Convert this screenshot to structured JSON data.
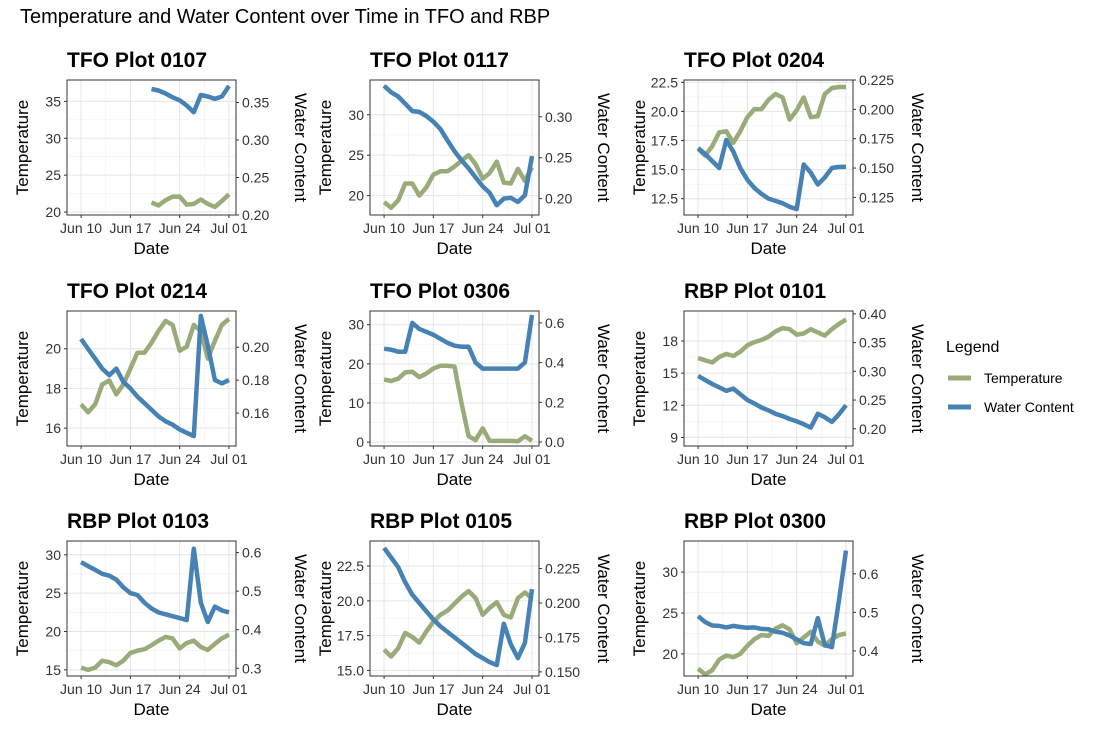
{
  "title": "Temperature and Water Content over Time in TFO and RBP",
  "legend": {
    "title": "Legend",
    "items": [
      {
        "label": "Temperature",
        "color": "#9aab7a"
      },
      {
        "label": "Water Content",
        "color": "#4682b4"
      }
    ]
  },
  "chart_data": [
    {
      "type": "line",
      "title": "TFO Plot 0107",
      "xlabel": "Date",
      "ylabel": "Temperature",
      "y2label": "Water Content",
      "x_ticks": [
        "Jun 10",
        "Jun 17",
        "Jun 24",
        "Jul 01"
      ],
      "x": [
        "2023-06-20",
        "2023-06-21",
        "2023-06-22",
        "2023-06-23",
        "2023-06-24",
        "2023-06-25",
        "2023-06-26",
        "2023-06-27",
        "2023-06-28",
        "2023-06-29",
        "2023-06-30",
        "2023-07-01"
      ],
      "ylim": [
        19.6,
        37.9
      ],
      "y_ticks": [
        20,
        25,
        30,
        35
      ],
      "y2lim": [
        0.2,
        0.38
      ],
      "y2_ticks": [
        "0.20",
        "0.25",
        "0.30",
        "0.35"
      ],
      "series": [
        {
          "name": "Temperature",
          "values": [
            21.3,
            20.9,
            21.6,
            22.1,
            22.1,
            21.0,
            21.1,
            21.7,
            21.1,
            20.7,
            21.5,
            22.4
          ]
        },
        {
          "name": "Water Content",
          "values": [
            0.368,
            0.366,
            0.362,
            0.357,
            0.353,
            0.346,
            0.337,
            0.36,
            0.358,
            0.355,
            0.358,
            0.372
          ]
        }
      ]
    },
    {
      "type": "line",
      "title": "TFO Plot 0117",
      "xlabel": "Date",
      "ylabel": "Temperature",
      "y2label": "Water Content",
      "x_ticks": [
        "Jun 10",
        "Jun 17",
        "Jun 24",
        "Jul 01"
      ],
      "x": [
        "2023-06-10",
        "2023-06-11",
        "2023-06-12",
        "2023-06-13",
        "2023-06-14",
        "2023-06-15",
        "2023-06-16",
        "2023-06-17",
        "2023-06-18",
        "2023-06-19",
        "2023-06-20",
        "2023-06-21",
        "2023-06-22",
        "2023-06-23",
        "2023-06-24",
        "2023-06-25",
        "2023-06-26",
        "2023-06-27",
        "2023-06-28",
        "2023-06-29",
        "2023-06-30",
        "2023-07-01"
      ],
      "ylim": [
        17.6,
        34.3
      ],
      "y_ticks": [
        20,
        25,
        30
      ],
      "y2lim": [
        0.18,
        0.345
      ],
      "y2_ticks": [
        "0.20",
        "0.25",
        "0.30"
      ],
      "series": [
        {
          "name": "Temperature",
          "values": [
            19.2,
            18.5,
            19.4,
            21.5,
            21.5,
            20.0,
            21.0,
            22.6,
            23.0,
            23.0,
            23.6,
            24.3,
            25.0,
            23.9,
            22.1,
            22.8,
            24.2,
            21.6,
            21.5,
            23.3,
            21.8,
            23.5
          ]
        },
        {
          "name": "Water Content",
          "values": [
            0.338,
            0.33,
            0.325,
            0.316,
            0.307,
            0.306,
            0.301,
            0.294,
            0.285,
            0.271,
            0.258,
            0.247,
            0.237,
            0.226,
            0.215,
            0.207,
            0.192,
            0.2,
            0.201,
            0.196,
            0.204,
            0.252
          ]
        }
      ]
    },
    {
      "type": "line",
      "title": "TFO Plot 0204",
      "xlabel": "Date",
      "ylabel": "Temperature",
      "y2label": "Water Content",
      "x_ticks": [
        "Jun 10",
        "Jun 17",
        "Jun 24",
        "Jul 01"
      ],
      "x": [
        "2023-06-10",
        "2023-06-11",
        "2023-06-12",
        "2023-06-13",
        "2023-06-14",
        "2023-06-15",
        "2023-06-16",
        "2023-06-17",
        "2023-06-18",
        "2023-06-19",
        "2023-06-20",
        "2023-06-21",
        "2023-06-22",
        "2023-06-23",
        "2023-06-24",
        "2023-06-25",
        "2023-06-26",
        "2023-06-27",
        "2023-06-28",
        "2023-06-29",
        "2023-06-30",
        "2023-07-01"
      ],
      "ylim": [
        11.1,
        22.7
      ],
      "y_ticks": [
        12.5,
        15.0,
        17.5,
        20.0,
        22.5
      ],
      "y_tick_labels": [
        "12.5",
        "15.0",
        "17.5",
        "20.0",
        "22.5"
      ],
      "y2lim": [
        0.11,
        0.225
      ],
      "y2_ticks": [
        "0.125",
        "0.150",
        "0.175",
        "0.200",
        "0.225"
      ],
      "series": [
        {
          "name": "Temperature",
          "values": [
            16.8,
            16.2,
            17.0,
            18.2,
            18.3,
            17.3,
            18.3,
            19.5,
            20.2,
            20.2,
            21.0,
            21.5,
            21.2,
            19.3,
            20.1,
            21.2,
            19.5,
            19.6,
            21.5,
            22.0,
            22.1,
            22.1
          ]
        },
        {
          "name": "Water Content",
          "values": [
            0.167,
            0.162,
            0.156,
            0.15,
            0.174,
            0.164,
            0.15,
            0.14,
            0.133,
            0.128,
            0.124,
            0.122,
            0.12,
            0.117,
            0.115,
            0.153,
            0.146,
            0.136,
            0.142,
            0.15,
            0.151,
            0.151
          ]
        }
      ]
    },
    {
      "type": "line",
      "title": "TFO Plot 0214",
      "xlabel": "Date",
      "ylabel": "Temperature",
      "y2label": "Water Content",
      "x_ticks": [
        "Jun 10",
        "Jun 17",
        "Jun 24",
        "Jul 01"
      ],
      "x": [
        "2023-06-10",
        "2023-06-11",
        "2023-06-12",
        "2023-06-13",
        "2023-06-14",
        "2023-06-15",
        "2023-06-16",
        "2023-06-17",
        "2023-06-18",
        "2023-06-19",
        "2023-06-20",
        "2023-06-21",
        "2023-06-22",
        "2023-06-23",
        "2023-06-24",
        "2023-06-25",
        "2023-06-26",
        "2023-06-27",
        "2023-06-28",
        "2023-06-29",
        "2023-06-30",
        "2023-07-01"
      ],
      "ylim": [
        15.1,
        21.9
      ],
      "y_ticks": [
        16,
        18,
        20
      ],
      "y2lim": [
        0.14,
        0.222
      ],
      "y2_ticks": [
        "0.16",
        "0.18",
        "0.20"
      ],
      "series": [
        {
          "name": "Temperature",
          "values": [
            17.2,
            16.8,
            17.2,
            18.2,
            18.4,
            17.7,
            18.2,
            19.0,
            19.8,
            19.8,
            20.3,
            20.9,
            21.4,
            21.2,
            19.9,
            20.1,
            21.2,
            20.9,
            19.5,
            20.4,
            21.2,
            21.5
          ]
        },
        {
          "name": "Water Content",
          "values": [
            0.205,
            0.199,
            0.193,
            0.187,
            0.183,
            0.187,
            0.179,
            0.175,
            0.17,
            0.166,
            0.162,
            0.158,
            0.155,
            0.153,
            0.15,
            0.148,
            0.146,
            0.219,
            0.201,
            0.18,
            0.178,
            0.18
          ]
        }
      ]
    },
    {
      "type": "line",
      "title": "TFO Plot 0306",
      "xlabel": "Date",
      "ylabel": "Temperature",
      "y2label": "Water Content",
      "x_ticks": [
        "Jun 10",
        "Jun 17",
        "Jun 24",
        "Jul 01"
      ],
      "x": [
        "2023-06-10",
        "2023-06-11",
        "2023-06-12",
        "2023-06-13",
        "2023-06-14",
        "2023-06-15",
        "2023-06-16",
        "2023-06-17",
        "2023-06-18",
        "2023-06-19",
        "2023-06-20",
        "2023-06-21",
        "2023-06-22",
        "2023-06-23",
        "2023-06-24",
        "2023-06-25",
        "2023-06-26",
        "2023-06-27",
        "2023-06-28",
        "2023-06-29",
        "2023-06-30",
        "2023-07-01"
      ],
      "ylim": [
        -1.0,
        33.5
      ],
      "y_ticks": [
        0,
        10,
        20,
        30
      ],
      "y2lim": [
        -0.02,
        0.66
      ],
      "y2_ticks": [
        "0.0",
        "0.2",
        "0.4",
        "0.6"
      ],
      "series": [
        {
          "name": "Temperature",
          "values": [
            16.0,
            15.6,
            16.2,
            17.8,
            18.0,
            16.6,
            17.5,
            18.8,
            19.5,
            19.5,
            19.3,
            10.0,
            1.5,
            0.5,
            3.5,
            0.3,
            0.3,
            0.3,
            0.3,
            0.2,
            1.5,
            0.3
          ]
        },
        {
          "name": "Water Content",
          "values": [
            0.47,
            0.465,
            0.455,
            0.455,
            0.6,
            0.57,
            0.555,
            0.54,
            0.52,
            0.5,
            0.485,
            0.48,
            0.48,
            0.4,
            0.37,
            0.37,
            0.37,
            0.37,
            0.37,
            0.37,
            0.4,
            0.64
          ]
        }
      ]
    },
    {
      "type": "line",
      "title": "RBP Plot 0101",
      "xlabel": "Date",
      "ylabel": "Temperature",
      "y2label": "Water Content",
      "x_ticks": [
        "Jun 10",
        "Jun 17",
        "Jun 24",
        "Jul 01"
      ],
      "x": [
        "2023-06-10",
        "2023-06-11",
        "2023-06-12",
        "2023-06-13",
        "2023-06-14",
        "2023-06-15",
        "2023-06-16",
        "2023-06-17",
        "2023-06-18",
        "2023-06-19",
        "2023-06-20",
        "2023-06-21",
        "2023-06-22",
        "2023-06-23",
        "2023-06-24",
        "2023-06-25",
        "2023-06-26",
        "2023-06-27",
        "2023-06-28",
        "2023-06-29",
        "2023-06-30",
        "2023-07-01"
      ],
      "ylim": [
        8.2,
        20.8
      ],
      "y_ticks": [
        9,
        12,
        15,
        18
      ],
      "y2lim": [
        0.17,
        0.405
      ],
      "y2_ticks": [
        "0.20",
        "0.25",
        "0.30",
        "0.35",
        "0.40"
      ],
      "series": [
        {
          "name": "Temperature",
          "values": [
            16.4,
            16.2,
            16.0,
            16.5,
            16.8,
            16.6,
            17.0,
            17.6,
            17.9,
            18.1,
            18.4,
            18.9,
            19.2,
            19.1,
            18.6,
            18.7,
            19.1,
            18.8,
            18.5,
            19.1,
            19.6,
            20.0
          ]
        },
        {
          "name": "Water Content",
          "values": [
            0.292,
            0.285,
            0.278,
            0.272,
            0.266,
            0.27,
            0.26,
            0.25,
            0.244,
            0.237,
            0.232,
            0.226,
            0.222,
            0.217,
            0.213,
            0.208,
            0.202,
            0.226,
            0.22,
            0.212,
            0.225,
            0.241
          ]
        }
      ]
    },
    {
      "type": "line",
      "title": "RBP Plot 0103",
      "xlabel": "Date",
      "ylabel": "Temperature",
      "y2label": "Water Content",
      "x_ticks": [
        "Jun 10",
        "Jun 17",
        "Jun 24",
        "Jul 01"
      ],
      "x": [
        "2023-06-10",
        "2023-06-11",
        "2023-06-12",
        "2023-06-13",
        "2023-06-14",
        "2023-06-15",
        "2023-06-16",
        "2023-06-17",
        "2023-06-18",
        "2023-06-19",
        "2023-06-20",
        "2023-06-21",
        "2023-06-22",
        "2023-06-23",
        "2023-06-24",
        "2023-06-25",
        "2023-06-26",
        "2023-06-27",
        "2023-06-28",
        "2023-06-29",
        "2023-06-30",
        "2023-07-01"
      ],
      "ylim": [
        14.2,
        31.8
      ],
      "y_ticks": [
        15,
        20,
        25,
        30
      ],
      "y2lim": [
        0.28,
        0.63
      ],
      "y2_ticks": [
        "0.3",
        "0.4",
        "0.5",
        "0.6"
      ],
      "series": [
        {
          "name": "Temperature",
          "values": [
            15.3,
            15.0,
            15.3,
            16.2,
            16.0,
            15.6,
            16.2,
            17.2,
            17.5,
            17.7,
            18.2,
            18.8,
            19.3,
            19.1,
            17.8,
            18.5,
            18.8,
            18.0,
            17.6,
            18.4,
            19.1,
            19.6
          ]
        },
        {
          "name": "Water Content",
          "values": [
            0.575,
            0.565,
            0.555,
            0.545,
            0.54,
            0.53,
            0.51,
            0.495,
            0.49,
            0.47,
            0.455,
            0.445,
            0.44,
            0.435,
            0.43,
            0.425,
            0.61,
            0.47,
            0.42,
            0.46,
            0.45,
            0.445
          ]
        }
      ]
    },
    {
      "type": "line",
      "title": "RBP Plot 0105",
      "xlabel": "Date",
      "ylabel": "Temperature",
      "y2label": "Water Content",
      "x_ticks": [
        "Jun 10",
        "Jun 17",
        "Jun 24",
        "Jul 01"
      ],
      "x": [
        "2023-06-10",
        "2023-06-11",
        "2023-06-12",
        "2023-06-13",
        "2023-06-14",
        "2023-06-15",
        "2023-06-16",
        "2023-06-17",
        "2023-06-18",
        "2023-06-19",
        "2023-06-20",
        "2023-06-21",
        "2023-06-22",
        "2023-06-23",
        "2023-06-24",
        "2023-06-25",
        "2023-06-26",
        "2023-06-27",
        "2023-06-28",
        "2023-06-29",
        "2023-06-30",
        "2023-07-01"
      ],
      "ylim": [
        14.6,
        24.3
      ],
      "y_ticks": [
        15.0,
        17.5,
        20.0,
        22.5
      ],
      "y_tick_labels": [
        "15.0",
        "17.5",
        "20.0",
        "22.5"
      ],
      "y2lim": [
        0.147,
        0.245
      ],
      "y2_ticks": [
        "0.150",
        "0.175",
        "0.200",
        "0.225"
      ],
      "series": [
        {
          "name": "Temperature",
          "values": [
            16.5,
            16.0,
            16.6,
            17.7,
            17.4,
            17.0,
            17.8,
            18.5,
            19.0,
            19.3,
            19.8,
            20.3,
            20.7,
            20.2,
            19.0,
            19.5,
            19.9,
            19.0,
            18.8,
            20.2,
            20.6,
            20.2
          ]
        },
        {
          "name": "Water Content",
          "values": [
            0.24,
            0.233,
            0.226,
            0.215,
            0.206,
            0.2,
            0.194,
            0.188,
            0.183,
            0.179,
            0.175,
            0.171,
            0.167,
            0.163,
            0.16,
            0.157,
            0.155,
            0.185,
            0.17,
            0.16,
            0.171,
            0.21
          ]
        }
      ]
    },
    {
      "type": "line",
      "title": "RBP Plot 0300",
      "xlabel": "Date",
      "ylabel": "Temperature",
      "y2label": "Water Content",
      "x_ticks": [
        "Jun 10",
        "Jun 17",
        "Jun 24",
        "Jul 01"
      ],
      "x": [
        "2023-06-10",
        "2023-06-11",
        "2023-06-12",
        "2023-06-13",
        "2023-06-14",
        "2023-06-15",
        "2023-06-16",
        "2023-06-17",
        "2023-06-18",
        "2023-06-19",
        "2023-06-20",
        "2023-06-21",
        "2023-06-22",
        "2023-06-23",
        "2023-06-24",
        "2023-06-25",
        "2023-06-26",
        "2023-06-27",
        "2023-06-28",
        "2023-06-29",
        "2023-06-30",
        "2023-07-01"
      ],
      "ylim": [
        17.3,
        33.8
      ],
      "y_ticks": [
        20,
        25,
        30
      ],
      "y2lim": [
        0.335,
        0.685
      ],
      "y2_ticks": [
        "0.4",
        "0.5",
        "0.6"
      ],
      "series": [
        {
          "name": "Temperature",
          "values": [
            18.2,
            17.5,
            18.0,
            19.3,
            19.8,
            19.6,
            20.0,
            21.0,
            21.8,
            22.3,
            22.2,
            23.1,
            23.5,
            23.0,
            21.3,
            22.0,
            22.7,
            21.5,
            21.0,
            21.8,
            22.3,
            22.5
          ]
        },
        {
          "name": "Water Content",
          "values": [
            0.49,
            0.475,
            0.466,
            0.465,
            0.461,
            0.465,
            0.462,
            0.46,
            0.461,
            0.457,
            0.456,
            0.45,
            0.447,
            0.44,
            0.43,
            0.42,
            0.418,
            0.485,
            0.415,
            0.41,
            0.53,
            0.66
          ]
        }
      ]
    }
  ]
}
